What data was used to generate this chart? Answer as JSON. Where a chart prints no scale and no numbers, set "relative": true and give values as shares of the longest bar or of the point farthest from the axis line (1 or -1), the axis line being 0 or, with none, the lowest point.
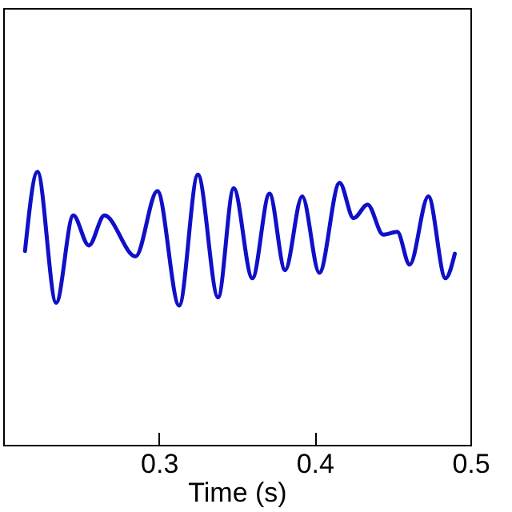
{
  "chart_data": {
    "type": "line",
    "xlabel": "Time (s)",
    "relative": true,
    "xlim": [
      0.2,
      0.5
    ],
    "xticks": [
      0.3,
      0.4,
      0.5
    ],
    "grid": false,
    "legend": false,
    "marker": "none",
    "line_style": "solid",
    "x": [
      0.214,
      0.222,
      0.234,
      0.245,
      0.255,
      0.265,
      0.285,
      0.299,
      0.313,
      0.325,
      0.338,
      0.348,
      0.36,
      0.371,
      0.381,
      0.392,
      0.403,
      0.416,
      0.425,
      0.434,
      0.444,
      0.453,
      0.461,
      0.473,
      0.484,
      0.49
    ],
    "series": [
      {
        "color": "#1010c8",
        "values": [
          0.71,
          1.0,
          0.52,
          0.84,
          0.73,
          0.84,
          0.69,
          0.93,
          0.51,
          0.99,
          0.54,
          0.94,
          0.61,
          0.92,
          0.64,
          0.91,
          0.63,
          0.96,
          0.83,
          0.88,
          0.77,
          0.78,
          0.66,
          0.91,
          0.61,
          0.7
        ]
      }
    ]
  }
}
